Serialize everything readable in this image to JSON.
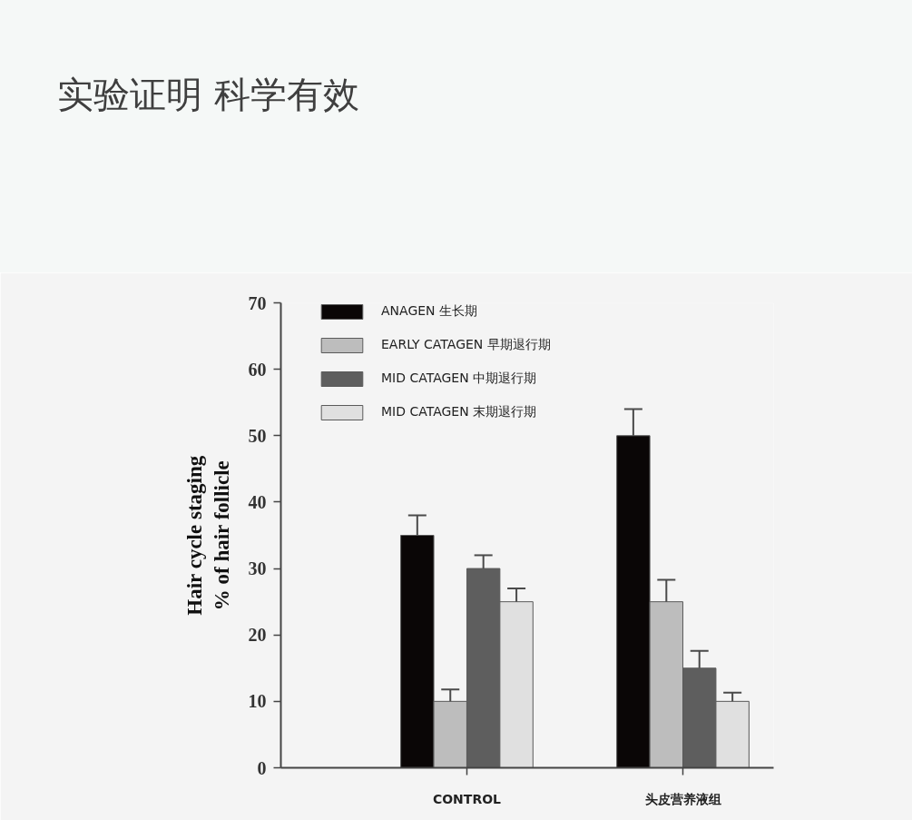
{
  "chart_data": {
    "type": "bar",
    "title": "实验证明 科学有效",
    "ylabel": "Hair cycle staging\n% of hair follicle",
    "categories": [
      "CONTROL",
      "头皮营养液组"
    ],
    "series": [
      {
        "name": "ANAGEN 生长期",
        "color": "#0a0606",
        "values": [
          35,
          50
        ],
        "errors": [
          [
            35,
            38
          ],
          [
            50,
            54
          ]
        ]
      },
      {
        "name": "EARLY CATAGEN 早期退行期",
        "color": "#bdbdbd",
        "values": [
          10,
          25
        ],
        "errors": [
          [
            10,
            11.8
          ],
          [
            25,
            28.3
          ]
        ]
      },
      {
        "name": "MID CATAGEN 中期退行期",
        "color": "#5e5e5e",
        "values": [
          30,
          15
        ],
        "errors": [
          [
            30,
            32
          ],
          [
            15,
            17.6
          ]
        ]
      },
      {
        "name": "MID CATAGEN 末期退行期",
        "color": "#e0e0e0",
        "values": [
          25,
          10
        ],
        "errors": [
          [
            25,
            27
          ],
          [
            10,
            11.3
          ]
        ]
      }
    ],
    "ylim": [
      0,
      70
    ],
    "yticks": [
      0,
      10,
      20,
      30,
      40,
      50,
      60,
      70
    ],
    "legend": "top left"
  }
}
